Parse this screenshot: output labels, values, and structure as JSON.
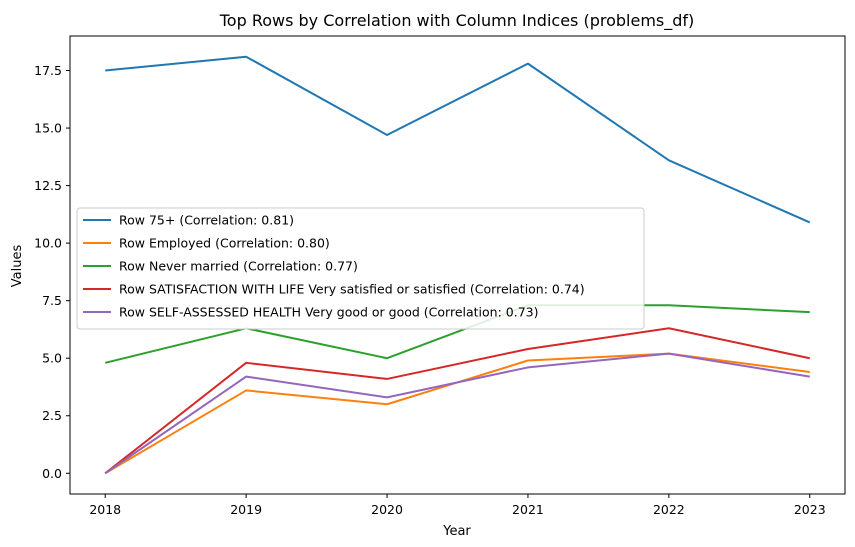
{
  "chart_data": {
    "type": "line",
    "title": "Top Rows by Correlation with Column Indices (problems_df)",
    "xlabel": "Year",
    "ylabel": "Values",
    "x": [
      2018,
      2019,
      2020,
      2021,
      2022,
      2023
    ],
    "x_tick_labels": [
      "2018",
      "2019",
      "2020",
      "2021",
      "2022",
      "2023"
    ],
    "y_ticks": [
      0.0,
      2.5,
      5.0,
      7.5,
      10.0,
      12.5,
      15.0,
      17.5
    ],
    "y_tick_labels": [
      "0.0",
      "2.5",
      "5.0",
      "7.5",
      "10.0",
      "12.5",
      "15.0",
      "17.5"
    ],
    "xlim": [
      2017.75,
      2023.25
    ],
    "ylim": [
      -0.9,
      19.0
    ],
    "grid": false,
    "legend_position": "center-left",
    "series": [
      {
        "name": "Row 75+ (Correlation: 0.81)",
        "color": "#1f77b4",
        "values": [
          17.5,
          18.1,
          14.7,
          17.8,
          13.6,
          10.9
        ]
      },
      {
        "name": "Row Employed (Correlation: 0.80)",
        "color": "#ff7f0e",
        "values": [
          0.0,
          3.6,
          3.0,
          4.9,
          5.2,
          4.4
        ]
      },
      {
        "name": "Row Never married (Correlation: 0.77)",
        "color": "#2ca02c",
        "values": [
          4.8,
          6.3,
          5.0,
          7.3,
          7.3,
          7.0
        ]
      },
      {
        "name": "Row SATISFACTION WITH LIFE Very satisfied or satisfied (Correlation: 0.74)",
        "color": "#d62728",
        "values": [
          0.0,
          4.8,
          4.1,
          5.4,
          6.3,
          5.0
        ]
      },
      {
        "name": "Row SELF-ASSESSED HEALTH Very good or good (Correlation: 0.73)",
        "color": "#9467bd",
        "values": [
          0.0,
          4.2,
          3.3,
          4.6,
          5.2,
          4.2
        ]
      }
    ]
  }
}
